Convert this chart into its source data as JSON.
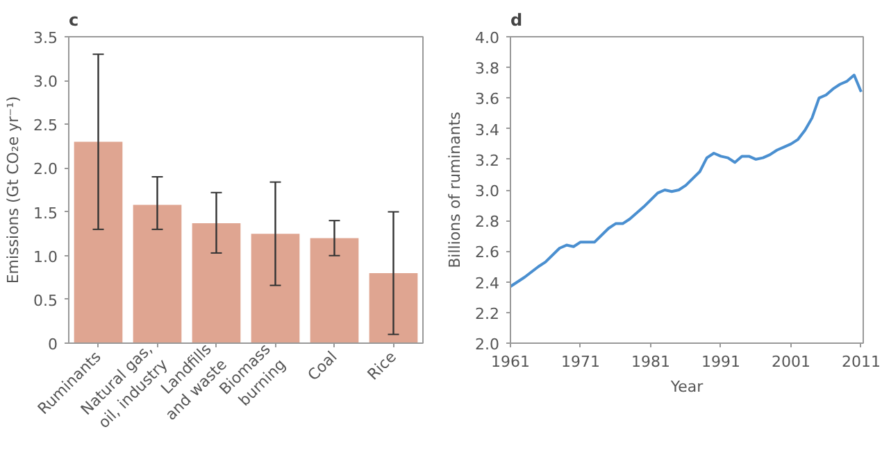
{
  "chart_data": [
    {
      "type": "bar",
      "title": "c",
      "ylabel": "Emissions (Gt CO₂e yr⁻¹)",
      "categories": [
        "Ruminants",
        "Natural gas,\noil, industry",
        "Landfills\nand waste",
        "Biomass\nburning",
        "Coal",
        "Rice"
      ],
      "values": [
        2.3,
        1.58,
        1.37,
        1.25,
        1.2,
        0.8
      ],
      "errors": [
        [
          1.3,
          3.3
        ],
        [
          1.3,
          1.9
        ],
        [
          1.03,
          1.72
        ],
        [
          0.66,
          1.84
        ],
        [
          1.0,
          1.4
        ],
        [
          0.1,
          1.5
        ]
      ],
      "color": "#dfa591",
      "ylim": [
        0,
        3.5
      ],
      "yticks": [
        0,
        0.5,
        {
          "value": 1,
          "label": "1.0"
        },
        1.5,
        {
          "value": 2,
          "label": "2.0"
        },
        2.5,
        {
          "value": 3,
          "label": "3.0"
        },
        3.5
      ],
      "grid": false
    },
    {
      "type": "line",
      "title": "d",
      "xlabel": "Year",
      "ylabel": "Billions of ruminants",
      "x": [
        1961,
        1963,
        1965,
        1966,
        1968,
        1969,
        1970,
        1971,
        1973,
        1975,
        1976,
        1977,
        1978,
        1980,
        1982,
        1983,
        1984,
        1985,
        1986,
        1988,
        1989,
        1990,
        1991,
        1992,
        1993,
        1994,
        1995,
        1996,
        1997,
        1998,
        1999,
        2000,
        2001,
        2002,
        2003,
        2004,
        2005,
        2006,
        2007,
        2008,
        2009,
        2010,
        2011
      ],
      "series": [
        {
          "color": "#4a8fd0",
          "values": [
            2.37,
            2.43,
            2.5,
            2.53,
            2.62,
            2.64,
            2.63,
            2.66,
            2.66,
            2.75,
            2.78,
            2.78,
            2.81,
            2.89,
            2.98,
            3.0,
            2.99,
            3.0,
            3.03,
            3.12,
            3.21,
            3.24,
            3.22,
            3.21,
            3.18,
            3.22,
            3.22,
            3.2,
            3.21,
            3.23,
            3.26,
            3.28,
            3.3,
            3.33,
            3.39,
            3.47,
            3.6,
            3.62,
            3.66,
            3.69,
            3.71,
            3.75,
            3.64
          ]
        }
      ],
      "xlim": [
        1961,
        2011.3
      ],
      "xticks": [
        1961,
        1971,
        1981,
        1991,
        2001,
        2011
      ],
      "ylim": [
        2,
        4
      ],
      "yticks": [
        {
          "value": 2,
          "label": "2.0"
        },
        {
          "value": 2.2,
          "label": "2.2"
        },
        {
          "value": 2.4,
          "label": "2.4"
        },
        {
          "value": 2.6,
          "label": "2.6"
        },
        {
          "value": 2.8,
          "label": "2.8"
        },
        {
          "value": 3,
          "label": "3.0"
        },
        {
          "value": 3.2,
          "label": "3.2"
        },
        {
          "value": 3.4,
          "label": "3.4"
        },
        {
          "value": 3.6,
          "label": "3.6"
        },
        {
          "value": 3.8,
          "label": "3.8"
        },
        {
          "value": 4,
          "label": "4.0"
        }
      ],
      "grid": false,
      "marker": "none",
      "line_style": "solid"
    }
  ]
}
